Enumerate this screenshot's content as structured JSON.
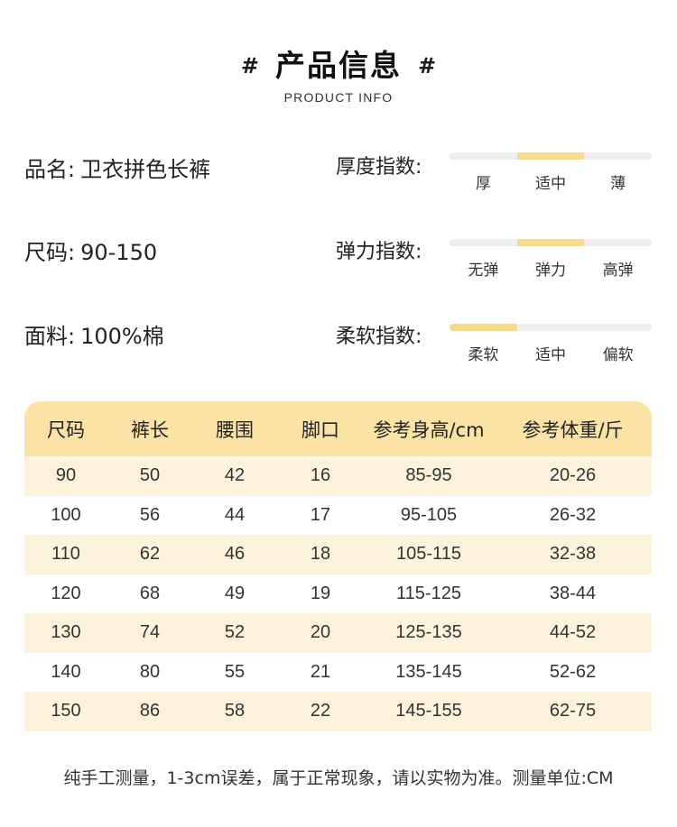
{
  "header": {
    "hash_left": "#",
    "title": "产品信息",
    "hash_right": "#",
    "subtitle": "PRODUCT INFO"
  },
  "specs": [
    {
      "label": "品名:",
      "value": "卫衣拼色长裤"
    },
    {
      "label": "尺码:",
      "value": "90-150"
    },
    {
      "label": "面料:",
      "value": "100%棉"
    }
  ],
  "indices": [
    {
      "label": "厚度指数:",
      "options": [
        "厚",
        "适中",
        "薄"
      ],
      "selected_index": 1
    },
    {
      "label": "弹力指数:",
      "options": [
        "无弹",
        "弹力",
        "高弹"
      ],
      "selected_index": 1
    },
    {
      "label": "柔软指数:",
      "options": [
        "柔软",
        "适中",
        "偏软"
      ],
      "selected_index": 0
    }
  ],
  "colors": {
    "accent": "#fbe3a6",
    "bar_fill": "#f7d98c",
    "row_tint": "#fdf3dc"
  },
  "size_table": {
    "headers": [
      "尺码",
      "裤长",
      "腰围",
      "脚口",
      "参考身高/cm",
      "参考体重/斤"
    ],
    "rows": [
      [
        "90",
        "50",
        "42",
        "16",
        "85-95",
        "20-26"
      ],
      [
        "100",
        "56",
        "44",
        "17",
        "95-105",
        "26-32"
      ],
      [
        "110",
        "62",
        "46",
        "18",
        "105-115",
        "32-38"
      ],
      [
        "120",
        "68",
        "49",
        "19",
        "115-125",
        "38-44"
      ],
      [
        "130",
        "74",
        "52",
        "20",
        "125-135",
        "44-52"
      ],
      [
        "140",
        "80",
        "55",
        "21",
        "135-145",
        "52-62"
      ],
      [
        "150",
        "86",
        "58",
        "22",
        "145-155",
        "62-75"
      ]
    ]
  },
  "footnote": "纯手工测量，1-3cm误差，属于正常现象，请以实物为准。测量单位:CM"
}
